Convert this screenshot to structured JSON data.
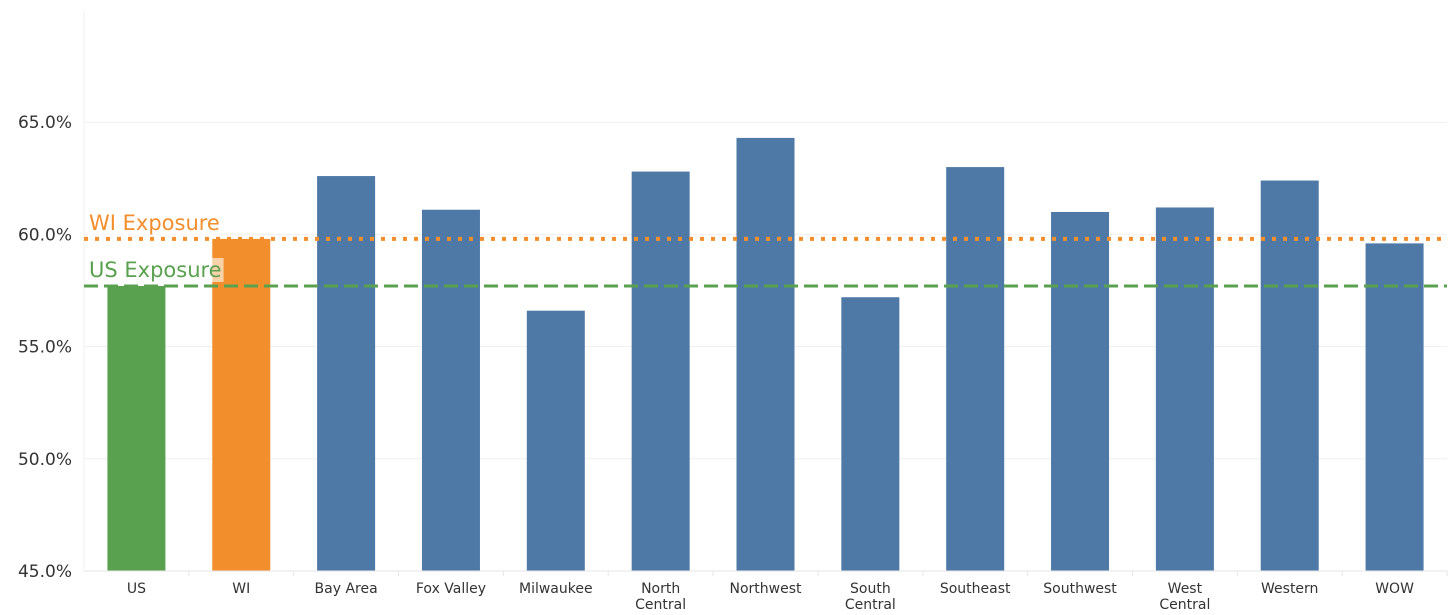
{
  "chart_data": {
    "type": "bar",
    "title": "",
    "xlabel": "",
    "ylabel": "",
    "ylim": [
      45.0,
      70.0
    ],
    "yticks": [
      "45.0%",
      "50.0%",
      "55.0%",
      "60.0%",
      "65.0%"
    ],
    "ytick_values": [
      45,
      50,
      55,
      60,
      65
    ],
    "grid": true,
    "categories": [
      [
        "US"
      ],
      [
        "WI"
      ],
      [
        "Bay Area"
      ],
      [
        "Fox Valley"
      ],
      [
        "Milwaukee"
      ],
      [
        "North",
        "Central"
      ],
      [
        "Northwest"
      ],
      [
        "South",
        "Central"
      ],
      [
        "Southeast"
      ],
      [
        "Southwest"
      ],
      [
        "West",
        "Central"
      ],
      [
        "Western"
      ],
      [
        "WOW"
      ]
    ],
    "values": [
      57.7,
      59.8,
      62.6,
      61.1,
      56.6,
      62.8,
      64.3,
      57.2,
      63.0,
      61.0,
      61.2,
      62.4,
      59.6
    ],
    "bar_colors": [
      "#59a14f",
      "#f28e2b",
      "#4e79a7",
      "#4e79a7",
      "#4e79a7",
      "#4e79a7",
      "#4e79a7",
      "#4e79a7",
      "#4e79a7",
      "#4e79a7",
      "#4e79a7",
      "#4e79a7",
      "#4e79a7"
    ],
    "reference_lines": [
      {
        "label": "WI Exposure",
        "value": 59.8,
        "color": "#f28e2b",
        "style": "dotted"
      },
      {
        "label": "US Exposure",
        "value": 57.7,
        "color": "#59a14f",
        "style": "dashed"
      }
    ]
  }
}
